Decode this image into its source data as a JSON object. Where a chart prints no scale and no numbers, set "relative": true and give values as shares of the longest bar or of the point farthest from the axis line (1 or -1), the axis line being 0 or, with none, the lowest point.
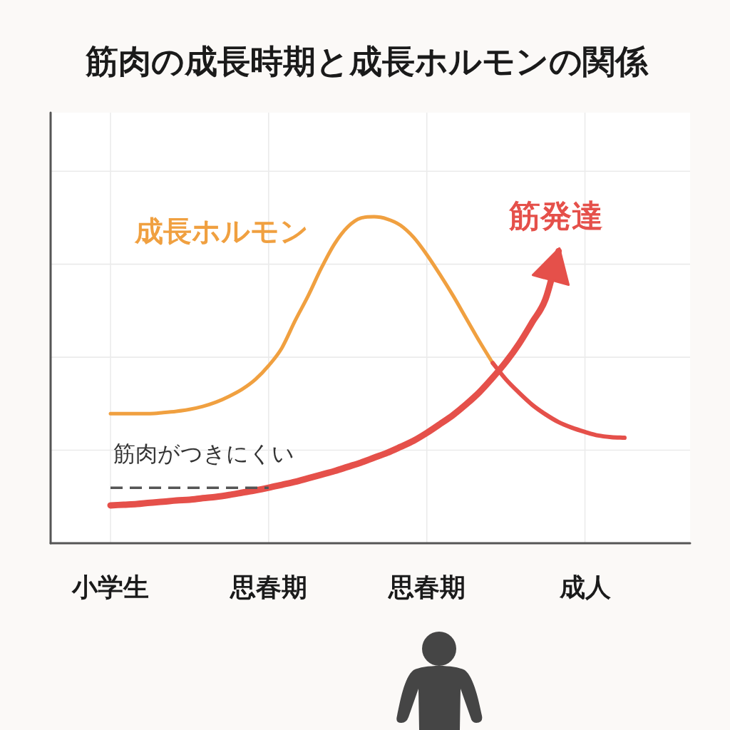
{
  "chart_data": {
    "type": "line",
    "title": "筋肉の成長時期と成長ホルモンの関係",
    "relative": true,
    "categories": [
      "小学生",
      null,
      null,
      null,
      null,
      null,
      null,
      null,
      null,
      null,
      null,
      null,
      "思春期",
      null,
      null,
      null,
      null,
      null,
      null,
      null,
      null,
      null,
      null,
      null,
      "思春期",
      null,
      null,
      null,
      null,
      null,
      null,
      null,
      null,
      null,
      null,
      null,
      "成人",
      null,
      null,
      null
    ],
    "tick_labels": "x",
    "grid": true,
    "line_style": "solid",
    "series": [
      {
        "name": "成長ホルモン",
        "color": "#f0a040",
        "values": [
          0.397,
          0.397,
          0.397,
          0.397,
          0.4,
          0.404,
          0.41,
          0.419,
          0.432,
          0.45,
          0.472,
          0.502,
          0.544,
          0.598,
          0.681,
          0.758,
          0.843,
          0.917,
          0.969,
          0.996,
          1.0,
          0.993,
          0.974,
          0.937,
          0.884,
          0.823,
          0.758,
          0.688,
          0.618,
          0.552,
          null,
          null,
          null,
          null,
          null,
          null,
          null,
          null,
          null,
          null
        ]
      },
      {
        "color": "#e5504a",
        "values": [
          null,
          null,
          null,
          null,
          null,
          null,
          null,
          null,
          null,
          null,
          null,
          null,
          null,
          null,
          null,
          null,
          null,
          null,
          null,
          null,
          null,
          null,
          null,
          null,
          null,
          null,
          null,
          null,
          null,
          0.552,
          0.502,
          0.461,
          0.424,
          0.395,
          0.371,
          0.354,
          0.341,
          0.33,
          0.325,
          0.323
        ]
      },
      {
        "name": "筋発達",
        "color": "#e5504a",
        "values": [
          0.116,
          0.118,
          0.12,
          0.124,
          0.127,
          0.131,
          0.133,
          0.138,
          0.142,
          0.148,
          0.155,
          0.162,
          0.17,
          0.179,
          0.188,
          0.199,
          0.21,
          0.221,
          0.234,
          0.247,
          0.262,
          0.277,
          0.295,
          0.314,
          0.338,
          0.365,
          0.393,
          0.426,
          0.463,
          0.507,
          0.555,
          0.611,
          0.677,
          0.747,
          0.895,
          null,
          null,
          null,
          null,
          null
        ]
      },
      {
        "name": "筋肉がつきにくい",
        "color": "#555555",
        "line_style": "dashed",
        "values": [
          0.17,
          0.17,
          0.17,
          0.17,
          0.17,
          0.17,
          0.17,
          0.17,
          0.17,
          0.17,
          0.17,
          0.17,
          0.17,
          null,
          null,
          null,
          null,
          null,
          null,
          null,
          null,
          null,
          null,
          null,
          null,
          null,
          null,
          null,
          null,
          null,
          null,
          null,
          null,
          null,
          null,
          null,
          null,
          null,
          null,
          null
        ]
      }
    ]
  }
}
